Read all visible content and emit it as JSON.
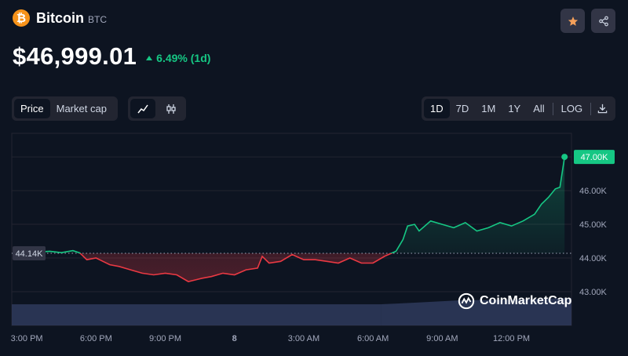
{
  "coin": {
    "name": "Bitcoin",
    "symbol": "BTC",
    "logo_glyph": "₿",
    "logo_color": "#f7931a"
  },
  "price": {
    "value": "$46,999.01",
    "change": "6.49% (1d)",
    "change_color": "#16c784"
  },
  "toolbar": {
    "metric_tabs": [
      {
        "label": "Price",
        "active": true
      },
      {
        "label": "Market cap",
        "active": false
      }
    ],
    "chart_types": [
      "line-chart-icon",
      "candlestick-icon"
    ],
    "ranges": [
      {
        "label": "1D",
        "active": true
      },
      {
        "label": "7D",
        "active": false
      },
      {
        "label": "1M",
        "active": false
      },
      {
        "label": "1Y",
        "active": false
      },
      {
        "label": "All",
        "active": false
      }
    ],
    "log_label": "LOG",
    "download_icon": "download-icon"
  },
  "actions": {
    "star_icon": "star-icon",
    "share_icon": "share-icon",
    "star_color": "#f5a05a"
  },
  "watermark": {
    "text": "CoinMarketCap",
    "icon": "coinmarketcap-logo-icon"
  },
  "chart_data": {
    "type": "area",
    "baseline": 44140,
    "baseline_label": "44.14K",
    "last_label": "47.00K",
    "ylim": [
      42000,
      47700
    ],
    "y_ticks": [
      {
        "value": 43000,
        "label": "43.00K"
      },
      {
        "value": 44000,
        "label": "44.00K"
      },
      {
        "value": 45000,
        "label": "45.00K"
      },
      {
        "value": 46000,
        "label": "46.00K"
      }
    ],
    "x_ticks": [
      {
        "t": 0,
        "label": "3:00 PM"
      },
      {
        "t": 3,
        "label": "6:00 PM"
      },
      {
        "t": 6,
        "label": "9:00 PM"
      },
      {
        "t": 9,
        "label": "8"
      },
      {
        "t": 12,
        "label": "3:00 AM"
      },
      {
        "t": 15,
        "label": "6:00 AM"
      },
      {
        "t": 18,
        "label": "9:00 AM"
      },
      {
        "t": 21,
        "label": "12:00 PM"
      }
    ],
    "xlim": [
      -0.65,
      23.6
    ],
    "up_color": "#16c784",
    "down_color": "#ea3943",
    "series": [
      {
        "x": [
          -0.6,
          0,
          0.5,
          1,
          1.5,
          2,
          2.3,
          2.6,
          3,
          3.3,
          3.6,
          4,
          4.5,
          5,
          5.5,
          6,
          6.5,
          7,
          7.3,
          7.6,
          8,
          8.5,
          9,
          9.5,
          10,
          10.2,
          10.5,
          11,
          11.5,
          12,
          12.5,
          13,
          13.5,
          14,
          14.5,
          15,
          15.5,
          16,
          16.3,
          16.5,
          16.8,
          17,
          17.5,
          18,
          18.5,
          19,
          19.5,
          20,
          20.5,
          21,
          21.5,
          22,
          22.3,
          22.6,
          22.9,
          23.1,
          23.3
        ],
        "y": [
          44150,
          44150,
          44180,
          44200,
          44160,
          44220,
          44150,
          43950,
          44000,
          43900,
          43800,
          43750,
          43650,
          43550,
          43500,
          43550,
          43500,
          43300,
          43350,
          43400,
          43450,
          43550,
          43500,
          43650,
          43700,
          44050,
          43850,
          43900,
          44100,
          43950,
          43950,
          43900,
          43850,
          44000,
          43850,
          43850,
          44050,
          44200,
          44550,
          44950,
          45000,
          44800,
          45100,
          45000,
          44900,
          45050,
          44800,
          44900,
          45050,
          44950,
          45100,
          45300,
          45600,
          45800,
          46050,
          46100,
          47000
        ]
      }
    ],
    "volume_level": [
      0.3,
      0.33
    ]
  }
}
